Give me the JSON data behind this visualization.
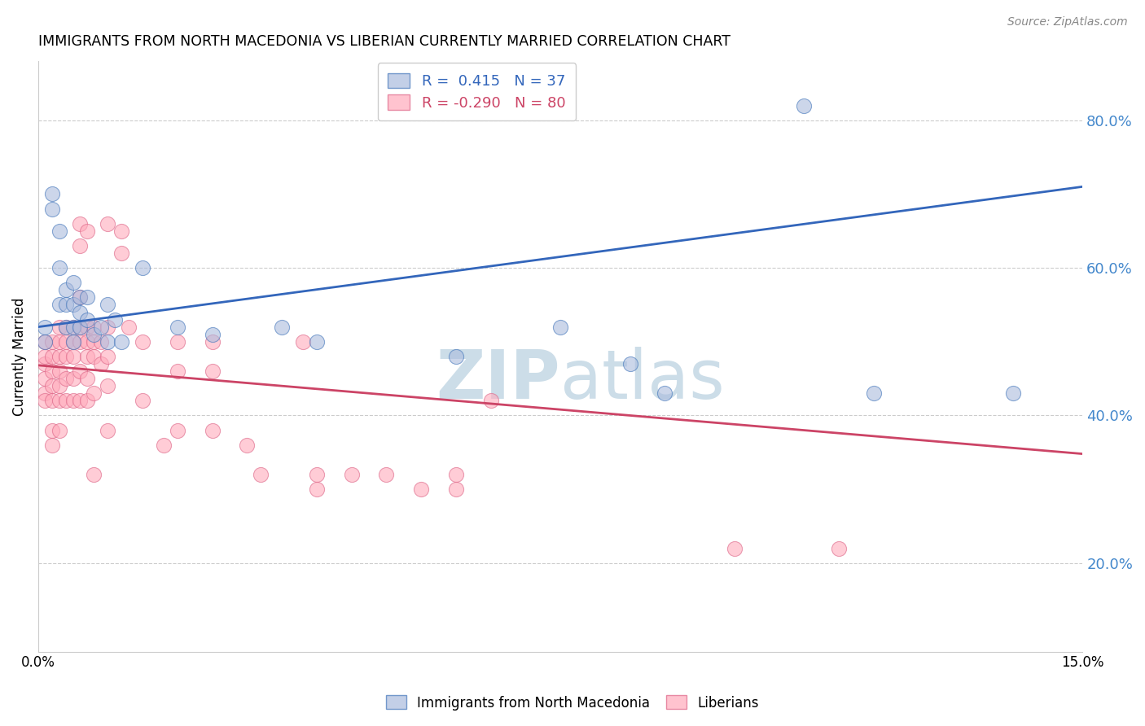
{
  "title": "IMMIGRANTS FROM NORTH MACEDONIA VS LIBERIAN CURRENTLY MARRIED CORRELATION CHART",
  "source": "Source: ZipAtlas.com",
  "ylabel": "Currently Married",
  "right_yticks": [
    "80.0%",
    "60.0%",
    "40.0%",
    "20.0%"
  ],
  "right_ytick_vals": [
    0.8,
    0.6,
    0.4,
    0.2
  ],
  "xlim": [
    0.0,
    0.15
  ],
  "ylim": [
    0.08,
    0.88
  ],
  "legend_blue_r": "0.415",
  "legend_blue_n": "37",
  "legend_pink_r": "-0.290",
  "legend_pink_n": "80",
  "blue_fill": "#AABBDD",
  "pink_fill": "#FFAABB",
  "blue_edge": "#4477BB",
  "pink_edge": "#DD6688",
  "blue_line_color": "#3366BB",
  "pink_line_color": "#CC4466",
  "watermark_color": "#CCDDE8",
  "right_axis_color": "#4488CC",
  "blue_scatter": [
    [
      0.001,
      0.52
    ],
    [
      0.001,
      0.5
    ],
    [
      0.002,
      0.7
    ],
    [
      0.002,
      0.68
    ],
    [
      0.003,
      0.65
    ],
    [
      0.003,
      0.6
    ],
    [
      0.003,
      0.55
    ],
    [
      0.004,
      0.57
    ],
    [
      0.004,
      0.55
    ],
    [
      0.004,
      0.52
    ],
    [
      0.005,
      0.58
    ],
    [
      0.005,
      0.55
    ],
    [
      0.005,
      0.52
    ],
    [
      0.005,
      0.5
    ],
    [
      0.006,
      0.56
    ],
    [
      0.006,
      0.54
    ],
    [
      0.006,
      0.52
    ],
    [
      0.007,
      0.56
    ],
    [
      0.007,
      0.53
    ],
    [
      0.008,
      0.51
    ],
    [
      0.009,
      0.52
    ],
    [
      0.01,
      0.55
    ],
    [
      0.01,
      0.5
    ],
    [
      0.011,
      0.53
    ],
    [
      0.012,
      0.5
    ],
    [
      0.015,
      0.6
    ],
    [
      0.02,
      0.52
    ],
    [
      0.025,
      0.51
    ],
    [
      0.035,
      0.52
    ],
    [
      0.04,
      0.5
    ],
    [
      0.06,
      0.48
    ],
    [
      0.075,
      0.52
    ],
    [
      0.085,
      0.47
    ],
    [
      0.09,
      0.43
    ],
    [
      0.11,
      0.82
    ],
    [
      0.12,
      0.43
    ],
    [
      0.14,
      0.43
    ]
  ],
  "pink_scatter": [
    [
      0.001,
      0.47
    ],
    [
      0.001,
      0.45
    ],
    [
      0.001,
      0.43
    ],
    [
      0.001,
      0.5
    ],
    [
      0.001,
      0.48
    ],
    [
      0.001,
      0.42
    ],
    [
      0.002,
      0.5
    ],
    [
      0.002,
      0.48
    ],
    [
      0.002,
      0.46
    ],
    [
      0.002,
      0.44
    ],
    [
      0.002,
      0.42
    ],
    [
      0.002,
      0.38
    ],
    [
      0.002,
      0.36
    ],
    [
      0.003,
      0.52
    ],
    [
      0.003,
      0.5
    ],
    [
      0.003,
      0.48
    ],
    [
      0.003,
      0.46
    ],
    [
      0.003,
      0.44
    ],
    [
      0.003,
      0.42
    ],
    [
      0.003,
      0.38
    ],
    [
      0.004,
      0.52
    ],
    [
      0.004,
      0.5
    ],
    [
      0.004,
      0.48
    ],
    [
      0.004,
      0.45
    ],
    [
      0.004,
      0.42
    ],
    [
      0.005,
      0.52
    ],
    [
      0.005,
      0.5
    ],
    [
      0.005,
      0.48
    ],
    [
      0.005,
      0.45
    ],
    [
      0.005,
      0.42
    ],
    [
      0.006,
      0.66
    ],
    [
      0.006,
      0.63
    ],
    [
      0.006,
      0.56
    ],
    [
      0.006,
      0.52
    ],
    [
      0.006,
      0.5
    ],
    [
      0.006,
      0.46
    ],
    [
      0.006,
      0.42
    ],
    [
      0.007,
      0.65
    ],
    [
      0.007,
      0.52
    ],
    [
      0.007,
      0.5
    ],
    [
      0.007,
      0.48
    ],
    [
      0.007,
      0.45
    ],
    [
      0.007,
      0.42
    ],
    [
      0.008,
      0.52
    ],
    [
      0.008,
      0.5
    ],
    [
      0.008,
      0.48
    ],
    [
      0.008,
      0.43
    ],
    [
      0.008,
      0.32
    ],
    [
      0.009,
      0.5
    ],
    [
      0.009,
      0.47
    ],
    [
      0.01,
      0.66
    ],
    [
      0.01,
      0.52
    ],
    [
      0.01,
      0.48
    ],
    [
      0.01,
      0.44
    ],
    [
      0.01,
      0.38
    ],
    [
      0.012,
      0.65
    ],
    [
      0.012,
      0.62
    ],
    [
      0.013,
      0.52
    ],
    [
      0.015,
      0.5
    ],
    [
      0.015,
      0.42
    ],
    [
      0.018,
      0.36
    ],
    [
      0.02,
      0.5
    ],
    [
      0.02,
      0.46
    ],
    [
      0.02,
      0.38
    ],
    [
      0.025,
      0.5
    ],
    [
      0.025,
      0.46
    ],
    [
      0.025,
      0.38
    ],
    [
      0.03,
      0.36
    ],
    [
      0.032,
      0.32
    ],
    [
      0.038,
      0.5
    ],
    [
      0.04,
      0.32
    ],
    [
      0.04,
      0.3
    ],
    [
      0.045,
      0.32
    ],
    [
      0.05,
      0.32
    ],
    [
      0.055,
      0.3
    ],
    [
      0.06,
      0.32
    ],
    [
      0.06,
      0.3
    ],
    [
      0.065,
      0.42
    ],
    [
      0.1,
      0.22
    ],
    [
      0.115,
      0.22
    ]
  ],
  "blue_trendline_x": [
    0.0,
    0.15
  ],
  "blue_trendline_y": [
    0.52,
    0.71
  ],
  "pink_trendline_x": [
    0.0,
    0.15
  ],
  "pink_trendline_y": [
    0.468,
    0.348
  ]
}
